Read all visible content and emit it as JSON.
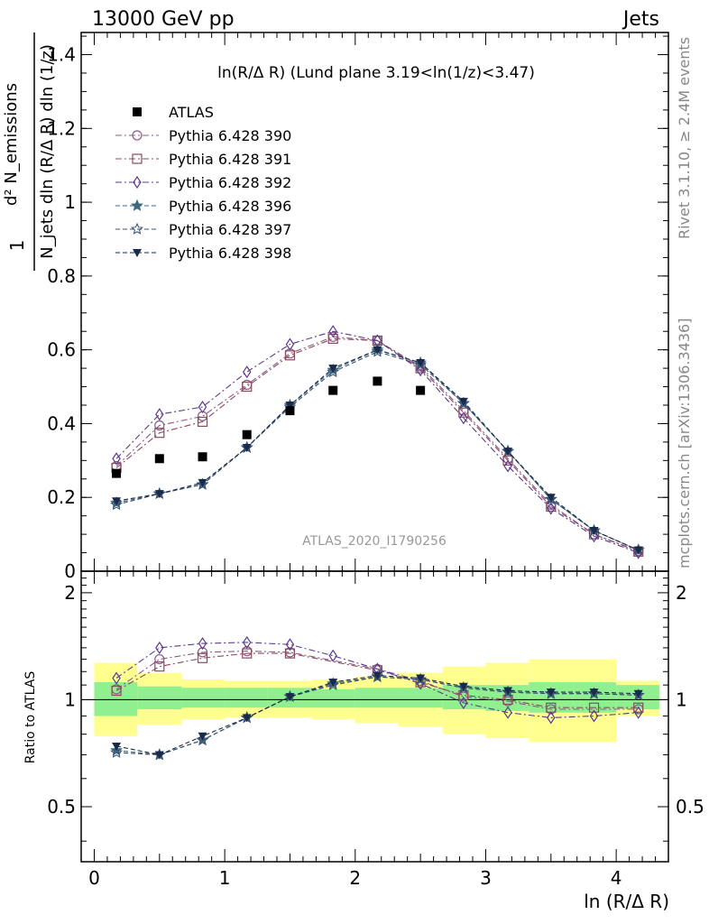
{
  "header": {
    "left": "13000 GeV pp",
    "right": "Jets",
    "rivet": "Rivet 3.1.10, ≥ 2.4M events",
    "mcplots": "mcplots.cern.ch [arXiv:1306.3436]",
    "analysis": "ATLAS_2020_I1790256"
  },
  "chart_data": [
    {
      "type": "scatter",
      "title": "ln(R/Δ R) (Lund plane 3.19<ln(1/z)<3.47)",
      "ylabel_top": "d² N_emissions",
      "ylabel_bottom": "N_jets dln (R/Δ R) dln (1/z)",
      "ylabel_one": "1",
      "xlabel": "ln (R/Δ R)",
      "xlim": [
        -0.1,
        4.4
      ],
      "ylim": [
        0,
        1.46
      ],
      "yticks": [
        0,
        0.2,
        0.4,
        0.6,
        0.8,
        1,
        1.2,
        1.4
      ],
      "ytick_labels": [
        "0",
        "0.2",
        "0.4",
        "0.6",
        "0.8",
        "1",
        "1.2",
        "1.4"
      ],
      "legend_position": "top-left",
      "x": [
        0.17,
        0.5,
        0.83,
        1.17,
        1.5,
        1.83,
        2.17,
        2.5,
        2.83,
        3.17,
        3.5,
        3.83,
        4.17
      ],
      "data": {
        "name": "ATLAS",
        "values": [
          0.265,
          0.305,
          0.31,
          0.37,
          0.435,
          0.49,
          0.515,
          0.49,
          null,
          null,
          null,
          null,
          null
        ]
      },
      "series": [
        {
          "name": "Pythia 6.428 390",
          "marker": "circle-open",
          "dash": "dashdot",
          "color": "#8c5a8c",
          "values": [
            0.285,
            0.395,
            0.42,
            0.505,
            0.59,
            0.635,
            0.625,
            0.555,
            0.435,
            0.305,
            0.18,
            0.1,
            0.055
          ]
        },
        {
          "name": "Pythia 6.428 391",
          "marker": "square-open",
          "dash": "dashdot",
          "color": "#8c4a5a",
          "values": [
            0.28,
            0.375,
            0.405,
            0.5,
            0.585,
            0.63,
            0.625,
            0.55,
            0.43,
            0.3,
            0.175,
            0.1,
            0.053
          ]
        },
        {
          "name": "Pythia 6.428 392",
          "marker": "diamond-open",
          "dash": "dashdot",
          "color": "#5a3a8c",
          "values": [
            0.305,
            0.425,
            0.445,
            0.54,
            0.615,
            0.65,
            0.625,
            0.545,
            0.415,
            0.285,
            0.17,
            0.095,
            0.05
          ]
        },
        {
          "name": "Pythia 6.428 396",
          "marker": "star-filled",
          "dash": "dashed",
          "color": "#3a6a80",
          "values": [
            0.185,
            0.21,
            0.235,
            0.335,
            0.45,
            0.545,
            0.6,
            0.565,
            0.455,
            0.325,
            0.195,
            0.11,
            0.057
          ]
        },
        {
          "name": "Pythia 6.428 397",
          "marker": "star-open",
          "dash": "dashed",
          "color": "#3a5070",
          "values": [
            0.18,
            0.21,
            0.235,
            0.335,
            0.445,
            0.54,
            0.595,
            0.56,
            0.455,
            0.325,
            0.195,
            0.11,
            0.057
          ]
        },
        {
          "name": "Pythia 6.428 398",
          "marker": "triangle-down-filled",
          "dash": "dashed",
          "color": "#1a2a4a",
          "values": [
            0.19,
            0.21,
            0.24,
            0.335,
            0.45,
            0.55,
            0.6,
            0.565,
            0.46,
            0.325,
            0.2,
            0.11,
            0.057
          ]
        }
      ]
    },
    {
      "type": "scatter",
      "ylabel": "Ratio to ATLAS",
      "xlabel": "ln (R/Δ R)",
      "xlim": [
        -0.1,
        4.4
      ],
      "ylim": [
        0.35,
        2.3
      ],
      "yscale": "log",
      "yticks": [
        0.5,
        1,
        2
      ],
      "ytick_labels": [
        "0.5",
        "1",
        "2"
      ],
      "xticks": [
        0,
        1,
        2,
        3,
        4
      ],
      "xtick_labels": [
        "0",
        "1",
        "2",
        "3",
        "4"
      ],
      "reference": 1,
      "bands": {
        "edges": [
          0,
          0.33,
          0.67,
          1.0,
          1.33,
          1.67,
          2.0,
          2.33,
          2.67,
          3.0,
          3.33,
          3.67,
          4.0,
          4.33
        ],
        "inner_color": "#90f090",
        "outer_color": "#ffff90",
        "inner_lo": [
          0.9,
          0.94,
          0.95,
          0.95,
          0.95,
          0.95,
          0.95,
          0.95,
          0.94,
          0.93,
          0.92,
          0.92,
          0.94
        ],
        "inner_hi": [
          1.12,
          1.09,
          1.08,
          1.08,
          1.08,
          1.07,
          1.08,
          1.08,
          1.1,
          1.1,
          1.12,
          1.12,
          1.1
        ],
        "outer_lo": [
          0.79,
          0.85,
          0.88,
          0.89,
          0.89,
          0.88,
          0.86,
          0.84,
          0.8,
          0.78,
          0.76,
          0.76,
          0.9
        ],
        "outer_hi": [
          1.27,
          1.19,
          1.14,
          1.13,
          1.13,
          1.14,
          1.16,
          1.19,
          1.24,
          1.27,
          1.3,
          1.3,
          1.13
        ]
      },
      "series": [
        {
          "name": "Pythia 6.428 390",
          "values": [
            1.07,
            1.3,
            1.36,
            1.37,
            1.36,
            null,
            1.22,
            1.13,
            1.02,
            0.99,
            0.94,
            null,
            0.94
          ]
        },
        {
          "name": "Pythia 6.428 391",
          "values": [
            1.06,
            1.24,
            1.31,
            1.35,
            1.35,
            null,
            1.21,
            1.12,
            1.03,
            1.0,
            0.95,
            0.95,
            0.95
          ]
        },
        {
          "name": "Pythia 6.428 392",
          "values": [
            1.15,
            1.4,
            1.44,
            1.45,
            1.43,
            1.33,
            1.22,
            1.11,
            0.98,
            0.92,
            0.89,
            0.9,
            0.92
          ]
        },
        {
          "name": "Pythia 6.428 396",
          "values": [
            0.72,
            0.7,
            0.77,
            0.89,
            1.02,
            1.11,
            1.16,
            1.14,
            1.08,
            1.05,
            1.04,
            1.04,
            1.03
          ]
        },
        {
          "name": "Pythia 6.428 397",
          "values": [
            0.71,
            0.7,
            0.77,
            0.89,
            1.02,
            1.1,
            1.16,
            1.14,
            1.08,
            1.05,
            1.04,
            1.04,
            1.03
          ]
        },
        {
          "name": "Pythia 6.428 398",
          "values": [
            0.74,
            0.7,
            0.79,
            0.89,
            1.02,
            1.12,
            1.17,
            1.15,
            1.09,
            1.06,
            1.05,
            1.05,
            1.04
          ]
        }
      ]
    }
  ]
}
